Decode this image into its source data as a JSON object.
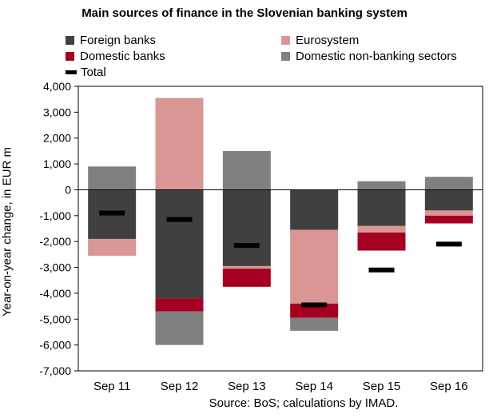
{
  "chart_data": {
    "type": "bar",
    "stacked": true,
    "title": "Main sources of finance in the Slovenian banking system",
    "ylabel": "Year-on-year change, in EUR m",
    "xlabel": "",
    "source": "Source: BoS; calculations by IMAD.",
    "categories": [
      "Sep 11",
      "Sep 12",
      "Sep 13",
      "Sep 14",
      "Sep 15",
      "Sep 16"
    ],
    "ylim": [
      -7000,
      4000
    ],
    "yticks": [
      4000,
      3000,
      2000,
      1000,
      0,
      -1000,
      -2000,
      -3000,
      -4000,
      -5000,
      -6000,
      -7000
    ],
    "ytick_labels": [
      "4,000",
      "3,000",
      "2,000",
      "1,000",
      "0",
      "-1,000",
      "-2,000",
      "-3,000",
      "-4,000",
      "-5,000",
      "-6,000",
      "-7,000"
    ],
    "grid": false,
    "legend_position": "top",
    "series": [
      {
        "name": "Foreign banks",
        "color": "#404040",
        "values": [
          -1900,
          -4200,
          -2950,
          -1550,
          -1400,
          -800
        ]
      },
      {
        "name": "Eurosystem",
        "color": "#d99694",
        "values": [
          -650,
          3550,
          -100,
          -2850,
          -250,
          -200
        ]
      },
      {
        "name": "Domestic banks",
        "color": "#a50021",
        "values": [
          0,
          -500,
          -700,
          -550,
          -700,
          -300
        ]
      },
      {
        "name": "Domestic non-banking sectors",
        "color": "#808080",
        "values": [
          900,
          -1300,
          1500,
          -500,
          330,
          500
        ]
      },
      {
        "name": "Total",
        "color": "#000000",
        "marker": "dash",
        "values": [
          -900,
          -1150,
          -2150,
          -4450,
          -3100,
          -2100
        ]
      }
    ]
  }
}
